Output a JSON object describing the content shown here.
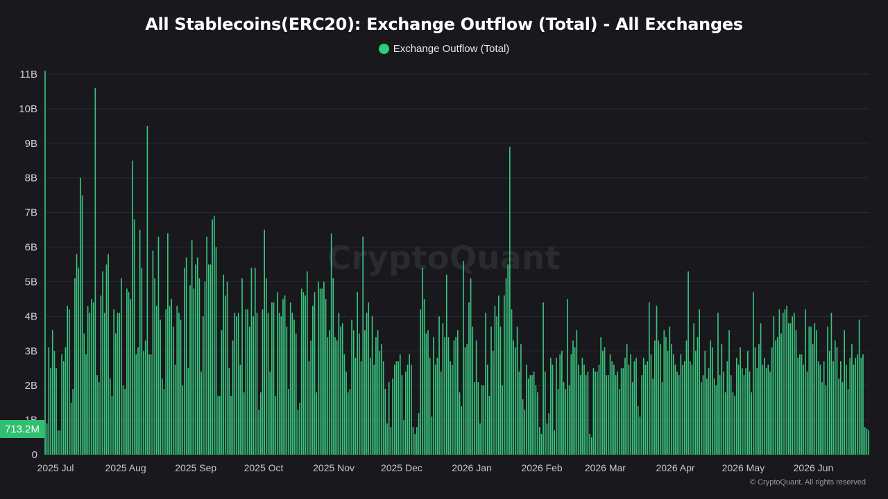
{
  "chart_data": {
    "type": "bar",
    "title": "All Stablecoins(ERC20): Exchange Outflow (Total) - All Exchanges",
    "series": [
      {
        "name": "Exchange Outflow (Total)",
        "color": "#2ecc7a"
      }
    ],
    "ylim": [
      0,
      11000000000
    ],
    "yticks": [
      {
        "value": 0,
        "label": "0"
      },
      {
        "value": 1000000000,
        "label": "1B"
      },
      {
        "value": 2000000000,
        "label": "2B"
      },
      {
        "value": 3000000000,
        "label": "3B"
      },
      {
        "value": 4000000000,
        "label": "4B"
      },
      {
        "value": 5000000000,
        "label": "5B"
      },
      {
        "value": 6000000000,
        "label": "6B"
      },
      {
        "value": 7000000000,
        "label": "7B"
      },
      {
        "value": 8000000000,
        "label": "8B"
      },
      {
        "value": 9000000000,
        "label": "9B"
      },
      {
        "value": 10000000000,
        "label": "10B"
      },
      {
        "value": 11000000000,
        "label": "11B"
      }
    ],
    "xticks": [
      {
        "date": "2025-07-01",
        "label": "2025 Jul"
      },
      {
        "date": "2025-08-01",
        "label": "2025 Aug"
      },
      {
        "date": "2025-09-01",
        "label": "2025 Sep"
      },
      {
        "date": "2025-10-01",
        "label": "2025 Oct"
      },
      {
        "date": "2025-11-01",
        "label": "2025 Nov"
      },
      {
        "date": "2025-12-01",
        "label": "2025 Dec"
      },
      {
        "date": "2026-01-01",
        "label": "2026 Jan"
      },
      {
        "date": "2026-02-01",
        "label": "2026 Feb"
      },
      {
        "date": "2026-03-01",
        "label": "2026 Mar"
      },
      {
        "date": "2026-04-01",
        "label": "2026 Apr"
      },
      {
        "date": "2026-05-01",
        "label": "2026 May"
      },
      {
        "date": "2026-06-01",
        "label": "2026 Jun"
      }
    ],
    "grid": true,
    "legend_position": "top-center",
    "last_value_label": "713.2M",
    "values_billion": [
      11.1,
      0.9,
      3.1,
      2.5,
      3.6,
      3.0,
      2.5,
      0.7,
      0.7,
      2.9,
      2.7,
      3.1,
      4.3,
      4.2,
      1.5,
      1.9,
      5.1,
      5.8,
      5.4,
      8.0,
      7.5,
      3.5,
      2.9,
      4.3,
      4.1,
      4.5,
      4.4,
      10.6,
      2.3,
      2.1,
      4.6,
      5.3,
      4.1,
      5.5,
      5.8,
      2.2,
      1.7,
      4.2,
      3.5,
      4.1,
      4.1,
      5.1,
      2.0,
      1.9,
      4.8,
      4.7,
      4.5,
      8.5,
      6.8,
      2.9,
      3.1,
      6.5,
      5.4,
      3.0,
      3.3,
      9.5,
      2.9,
      2.9,
      5.9,
      5.1,
      4.3,
      6.3,
      3.9,
      2.2,
      1.9,
      4.2,
      6.4,
      4.3,
      4.5,
      3.7,
      2.6,
      4.3,
      4.1,
      3.9,
      2.0,
      5.4,
      5.7,
      2.5,
      4.9,
      6.2,
      4.8,
      5.5,
      5.7,
      5.1,
      2.4,
      4.0,
      5.0,
      6.3,
      5.5,
      5.5,
      6.8,
      6.9,
      6.0,
      1.7,
      1.7,
      3.6,
      5.2,
      4.6,
      5.0,
      2.5,
      1.7,
      3.3,
      4.1,
      4.0,
      4.1,
      2.6,
      5.1,
      1.8,
      4.2,
      4.2,
      3.7,
      5.4,
      4.0,
      5.4,
      4.1,
      1.3,
      1.8,
      4.2,
      6.5,
      5.1,
      4.1,
      2.4,
      4.4,
      4.4,
      1.7,
      4.7,
      4.1,
      4.0,
      4.5,
      4.6,
      3.7,
      1.9,
      4.4,
      4.1,
      3.9,
      3.5,
      1.3,
      1.5,
      4.8,
      4.7,
      4.6,
      5.3,
      2.7,
      3.3,
      4.3,
      4.7,
      1.8,
      5.0,
      4.8,
      4.8,
      5.0,
      4.5,
      3.4,
      3.6,
      6.4,
      5.1,
      3.4,
      3.3,
      4.1,
      3.7,
      3.8,
      2.9,
      2.4,
      1.8,
      1.9,
      3.9,
      3.6,
      2.8,
      4.7,
      3.5,
      2.7,
      6.3,
      3.6,
      4.1,
      4.4,
      2.8,
      4.0,
      2.6,
      3.4,
      3.6,
      3.0,
      3.2,
      2.7,
      1.9,
      0.9,
      2.1,
      0.8,
      2.2,
      2.6,
      2.7,
      2.7,
      2.9,
      2.3,
      1.0,
      2.4,
      2.6,
      2.9,
      2.6,
      0.8,
      0.6,
      0.8,
      1.2,
      4.2,
      5.4,
      4.5,
      3.5,
      3.6,
      2.8,
      1.1,
      3.4,
      2.6,
      2.8,
      4.0,
      2.4,
      3.8,
      3.4,
      5.2,
      3.4,
      2.7,
      2.6,
      3.3,
      3.4,
      3.6,
      1.8,
      1.4,
      5.6,
      3.1,
      3.2,
      4.4,
      5.1,
      3.7,
      2.1,
      3.3,
      2.1,
      0.9,
      2.0,
      2.0,
      4.1,
      2.6,
      1.7,
      3.7,
      3.0,
      4.3,
      4.0,
      4.6,
      3.7,
      2.0,
      4.6,
      5.1,
      5.5,
      8.9,
      4.2,
      3.3,
      3.1,
      3.7,
      2.4,
      3.2,
      1.6,
      1.3,
      2.6,
      2.2,
      2.3,
      2.3,
      2.4,
      2.0,
      1.8,
      0.8,
      0.6,
      4.4,
      2.4,
      0.9,
      1.2,
      2.8,
      2.6,
      0.7,
      2.8,
      1.9,
      2.9,
      3.0,
      2.1,
      1.9,
      4.5,
      2.0,
      2.9,
      3.3,
      3.1,
      3.6,
      2.6,
      2.3,
      2.8,
      2.6,
      2.3,
      2.4,
      0.6,
      0.5,
      2.5,
      2.4,
      2.4,
      2.6,
      3.4,
      3.0,
      3.1,
      2.3,
      2.3,
      2.9,
      2.7,
      2.6,
      2.3,
      2.4,
      1.9,
      2.5,
      2.5,
      2.8,
      3.2,
      2.6,
      2.9,
      2.1,
      2.7,
      2.8,
      1.4,
      1.1,
      2.3,
      2.8,
      2.6,
      2.7,
      4.4,
      2.9,
      2.2,
      3.3,
      4.3,
      3.3,
      3.2,
      2.1,
      3.6,
      3.4,
      3.0,
      3.7,
      3.2,
      2.9,
      2.6,
      2.4,
      2.3,
      2.9,
      2.6,
      2.7,
      3.3,
      5.3,
      2.7,
      2.6,
      3.8,
      3.0,
      3.4,
      4.2,
      2.1,
      2.3,
      3.0,
      2.2,
      2.5,
      3.3,
      3.1,
      2.2,
      2.0,
      4.1,
      2.3,
      3.2,
      2.4,
      1.8,
      2.7,
      3.6,
      2.3,
      1.8,
      1.7,
      2.8,
      2.6,
      3.1,
      2.5,
      2.3,
      2.5,
      3.0,
      2.4,
      1.8,
      4.7,
      3.1,
      2.5,
      3.2,
      3.8,
      2.6,
      2.8,
      2.5,
      2.6,
      2.4,
      3.1,
      4.0,
      3.3,
      3.4,
      4.2,
      3.5,
      4.1,
      4.2,
      4.3,
      3.8,
      3.8,
      4.0,
      4.1,
      3.6,
      2.8,
      2.9,
      2.9,
      2.6,
      4.2,
      2.4,
      3.7,
      3.7,
      3.2,
      3.8,
      3.6,
      2.7,
      2.6,
      2.1,
      2.7,
      2.0,
      3.7,
      3.0,
      4.1,
      2.7,
      3.3,
      3.1,
      2.2,
      2.7,
      2.1,
      3.6,
      2.6,
      1.9,
      2.8,
      3.2,
      2.6,
      2.8,
      2.9,
      3.9,
      2.8,
      2.9,
      0.8,
      0.75,
      0.713
    ],
    "last_value": 0.7132
  },
  "watermark": "CryptoQuant",
  "copyright": "© CryptoQuant. All rights reserved"
}
